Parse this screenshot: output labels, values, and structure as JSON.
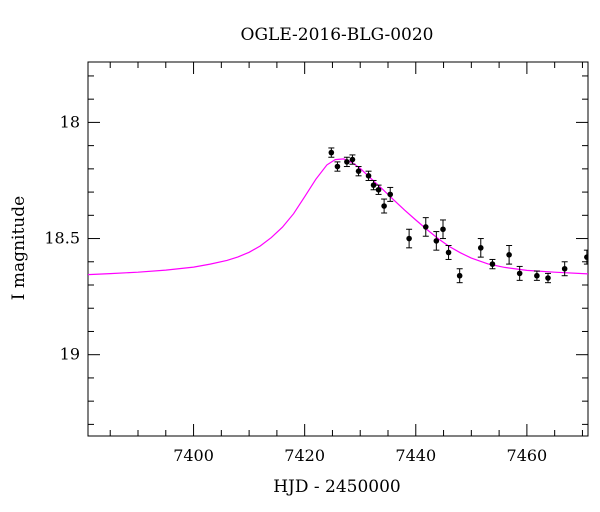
{
  "chart_data": {
    "type": "scatter",
    "title": "OGLE-2016-BLG-0020",
    "xlabel": "HJD - 2450000",
    "ylabel": "I magnitude",
    "xlim": [
      7381,
      7471
    ],
    "ylim": [
      19.35,
      17.74
    ],
    "y_inverted": true,
    "xticks": [
      7400,
      7420,
      7440,
      7460
    ],
    "xtick_labels": [
      "7400",
      "7420",
      "7440",
      "7460"
    ],
    "yticks": [
      18,
      18.5,
      19
    ],
    "ytick_labels": [
      "18",
      "18.5",
      "19"
    ],
    "grid": false,
    "legend": "none",
    "series": [
      {
        "kind": "points_with_errorbars",
        "color": "#000000",
        "x": [
          7424.8,
          7425.9,
          7427.6,
          7428.6,
          7429.7,
          7431.5,
          7432.4,
          7433.3,
          7434.3,
          7435.4,
          7438.8,
          7441.8,
          7443.7,
          7444.9,
          7445.9,
          7447.9,
          7451.7,
          7453.8,
          7456.8,
          7458.7,
          7461.8,
          7463.8,
          7466.8,
          7470.8
        ],
        "y": [
          18.13,
          18.19,
          18.17,
          18.16,
          18.21,
          18.23,
          18.27,
          18.29,
          18.36,
          18.31,
          18.5,
          18.45,
          18.51,
          18.46,
          18.56,
          18.66,
          18.54,
          18.61,
          18.57,
          18.65,
          18.66,
          18.67,
          18.63,
          18.58
        ],
        "yerr": [
          0.02,
          0.02,
          0.02,
          0.02,
          0.02,
          0.02,
          0.02,
          0.02,
          0.03,
          0.03,
          0.04,
          0.04,
          0.04,
          0.04,
          0.03,
          0.03,
          0.04,
          0.02,
          0.04,
          0.03,
          0.02,
          0.02,
          0.03,
          0.03
        ]
      },
      {
        "kind": "model_curve",
        "color": "#ff00ff",
        "x": [
          7381,
          7385,
          7390,
          7395,
          7400,
          7403,
          7406,
          7408,
          7410,
          7412,
          7414,
          7416,
          7418,
          7420,
          7422,
          7424,
          7425.5,
          7427,
          7428.5,
          7430,
          7432,
          7434,
          7436,
          7438,
          7440,
          7442,
          7444,
          7446,
          7448,
          7450,
          7453,
          7456,
          7460,
          7465,
          7471
        ],
        "y": [
          18.655,
          18.651,
          18.645,
          18.636,
          18.623,
          18.61,
          18.594,
          18.579,
          18.559,
          18.532,
          18.496,
          18.451,
          18.393,
          18.32,
          18.245,
          18.183,
          18.16,
          18.157,
          18.172,
          18.198,
          18.243,
          18.287,
          18.333,
          18.378,
          18.42,
          18.461,
          18.5,
          18.534,
          18.561,
          18.584,
          18.609,
          18.624,
          18.637,
          18.645,
          18.652
        ]
      }
    ]
  }
}
